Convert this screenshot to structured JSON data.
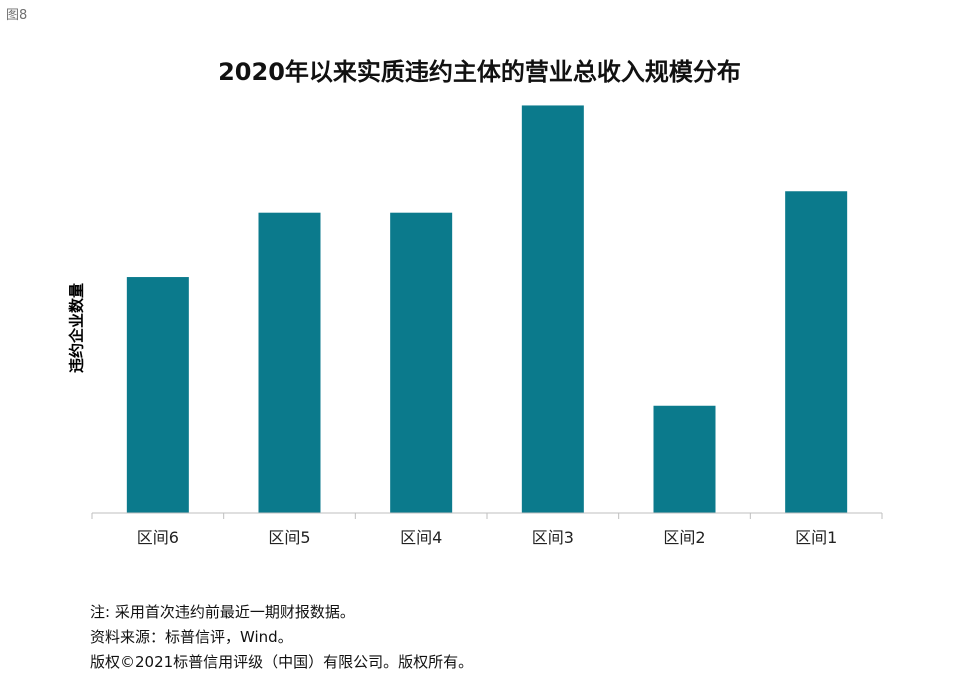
{
  "figure_label": "图8",
  "notes": [
    "注: 采用首次违约前最近一期财报数据。",
    "资料来源：标普信评，Wind。",
    "版权©2021标普信用评级（中国）有限公司。版权所有。"
  ],
  "chart_data": {
    "type": "bar",
    "title": "2020年以来实质违约主体的营业总收入规模分布",
    "xlabel": "",
    "ylabel": "违约企业数量",
    "categories": [
      "区间6",
      "区间5",
      "区间4",
      "区间3",
      "区间2",
      "区间1"
    ],
    "values": [
      11,
      14,
      14,
      19,
      5,
      15
    ],
    "ylim": [
      0,
      20
    ],
    "grid": false,
    "y_ticks_shown": false,
    "bar_color": "#0b7a8c",
    "axis_color": "#bfbfbf"
  }
}
